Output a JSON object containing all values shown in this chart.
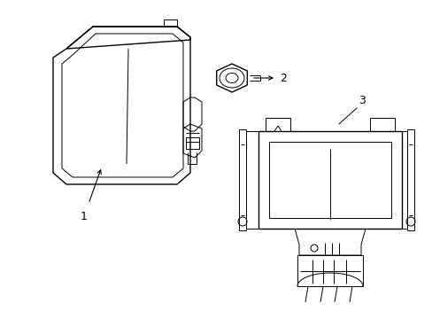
{
  "background_color": "#ffffff",
  "line_color": "#000000",
  "lw": 1.0,
  "tlw": 0.7,
  "label_1": "1",
  "label_2": "2",
  "label_3": "3",
  "fig_width": 4.89,
  "fig_height": 3.6,
  "dpi": 100
}
